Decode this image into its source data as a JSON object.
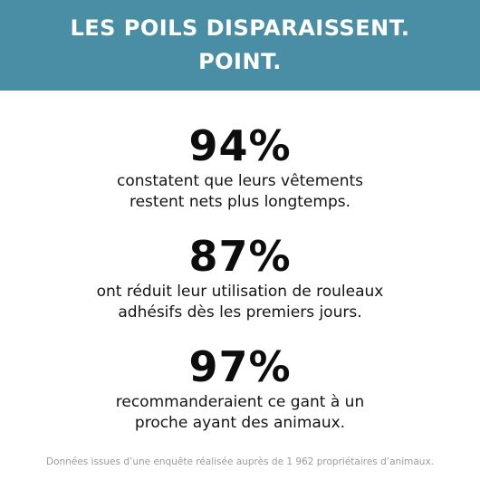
{
  "banner": {
    "line1": "LES POILS DISPARAISSENT.",
    "line2": "POINT."
  },
  "stats": [
    {
      "value": "94%",
      "desc_line1": "constatent que leurs vêtements",
      "desc_line2": "restent nets plus longtemps."
    },
    {
      "value": "87%",
      "desc_line1": "ont réduit leur utilisation de rouleaux",
      "desc_line2": "adhésifs dès les premiers jours."
    },
    {
      "value": "97%",
      "desc_line1": "recommanderaient ce gant à un",
      "desc_line2": "proche ayant des animaux."
    }
  ],
  "footnote": "Données issues d’une enquête réalisée auprès de 1 962 propriétaires d’animaux.",
  "colors": {
    "banner_bg": "#4a8ea6",
    "banner_text": "#ffffff",
    "stat_text": "#0d0d0d",
    "footnote_text": "#9a9a9a"
  }
}
